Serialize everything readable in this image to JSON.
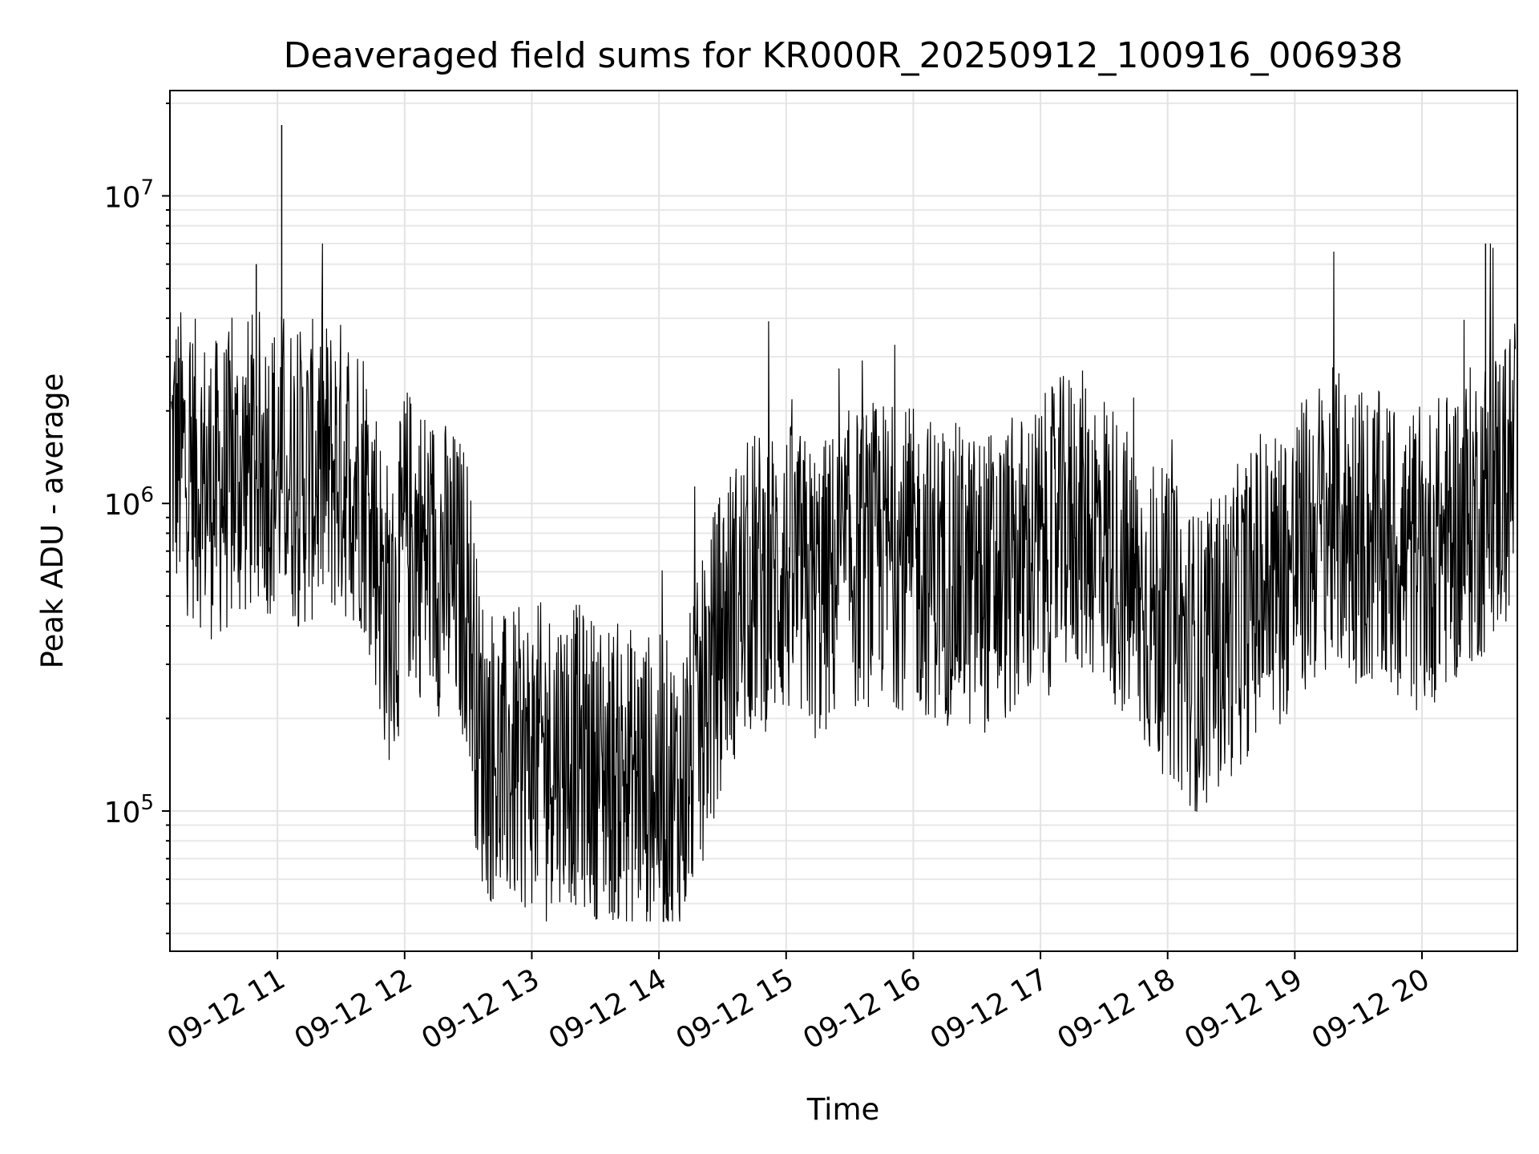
{
  "chart_data": {
    "type": "line",
    "title": "Deaveraged field sums for KR000R_20250912_100916_006938",
    "xlabel": "Time",
    "ylabel": "Peak ADU - average",
    "yscale": "log",
    "ylim": [
      35000,
      22000000
    ],
    "xlim": [
      "2025-09-12 10:09:16",
      "2025-09-12 20:45:00"
    ],
    "x_ticks": [
      "09-12 11",
      "09-12 12",
      "09-12 13",
      "09-12 14",
      "09-12 15",
      "09-12 16",
      "09-12 17",
      "09-12 18",
      "09-12 19",
      "09-12 20"
    ],
    "y_ticks": [
      {
        "value": 100000,
        "base": "10",
        "exp": "5"
      },
      {
        "value": 1000000,
        "base": "10",
        "exp": "6"
      },
      {
        "value": 10000000,
        "base": "10",
        "exp": "7"
      }
    ],
    "grid": true,
    "line_color": "#000000",
    "series": [
      {
        "x": [
          "2025-09-12 10:10",
          "2025-09-12 10:20",
          "2025-09-12 10:30",
          "2025-09-12 10:40",
          "2025-09-12 10:50",
          "2025-09-12 11:00",
          "2025-09-12 11:02",
          "2025-09-12 11:10",
          "2025-09-12 11:20",
          "2025-09-12 11:30",
          "2025-09-12 11:40",
          "2025-09-12 11:45",
          "2025-09-12 11:50",
          "2025-09-12 11:55",
          "2025-09-12 12:00",
          "2025-09-12 12:10",
          "2025-09-12 12:20",
          "2025-09-12 12:30",
          "2025-09-12 12:35",
          "2025-09-12 12:45",
          "2025-09-12 13:00",
          "2025-09-12 13:15",
          "2025-09-12 13:30",
          "2025-09-12 13:45",
          "2025-09-12 14:00",
          "2025-09-12 14:10",
          "2025-09-12 14:20",
          "2025-09-12 14:30",
          "2025-09-12 14:45",
          "2025-09-12 15:00",
          "2025-09-12 15:15",
          "2025-09-12 15:30",
          "2025-09-12 15:45",
          "2025-09-12 16:00",
          "2025-09-12 16:15",
          "2025-09-12 16:30",
          "2025-09-12 16:45",
          "2025-09-12 17:00",
          "2025-09-12 17:15",
          "2025-09-12 17:30",
          "2025-09-12 17:45",
          "2025-09-12 18:00",
          "2025-09-12 18:15",
          "2025-09-12 18:30",
          "2025-09-12 18:45",
          "2025-09-12 19:00",
          "2025-09-12 19:15",
          "2025-09-12 19:30",
          "2025-09-12 19:45",
          "2025-09-12 20:00",
          "2025-09-12 20:15",
          "2025-09-12 20:30",
          "2025-09-12 20:44"
        ],
        "y": [
          1500000,
          1300000,
          1100000,
          1200000,
          1400000,
          1300000,
          1400000,
          1200000,
          1300000,
          1300000,
          1200000,
          900000,
          500000,
          400000,
          800000,
          700000,
          600000,
          500000,
          180000,
          140000,
          150000,
          160000,
          140000,
          130000,
          120000,
          110000,
          200000,
          400000,
          550000,
          600000,
          500000,
          650000,
          700000,
          650000,
          600000,
          550000,
          600000,
          700000,
          900000,
          800000,
          500000,
          400000,
          300000,
          400000,
          550000,
          650000,
          900000,
          800000,
          700000,
          650000,
          800000,
          1000000,
          1300000
        ]
      }
    ]
  }
}
